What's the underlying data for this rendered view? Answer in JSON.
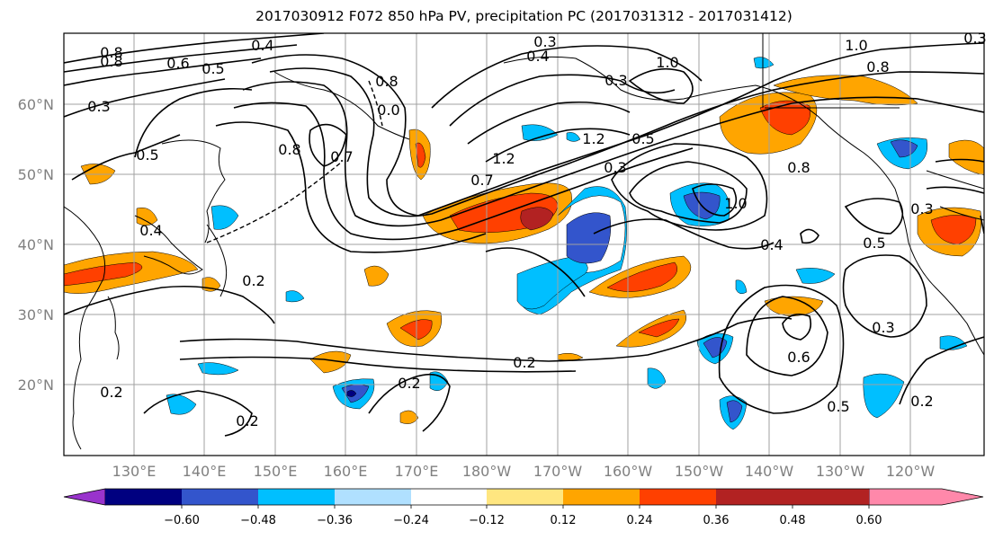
{
  "title": "2017030912 F072 850 hPa PV, precipitation PC (2017031312 - 2017031412)",
  "lat_labels": [
    "60°N",
    "50°N",
    "40°N",
    "30°N",
    "20°N"
  ],
  "lon_labels": [
    "130°E",
    "140°E",
    "150°E",
    "160°E",
    "170°E",
    "180°W",
    "170°W",
    "160°W",
    "150°W",
    "140°W",
    "130°W",
    "120°W"
  ],
  "contour_labels": [
    "0.8",
    "0.8",
    "0.4",
    "0.6",
    "0.5",
    "0.3",
    "0.3",
    "0.4",
    "1.0",
    "0.8",
    "0.0",
    "0.5",
    "0.7",
    "0.8",
    "0.3",
    "1.2",
    "1.2",
    "0.5",
    "0.7",
    "0.3",
    "0.8",
    "1.0",
    "1.0",
    "0.8",
    "0.3",
    "0.5",
    "0.4",
    "0.2",
    "0.2",
    "0.2",
    "0.2",
    "0.4",
    "0.6",
    "0.5",
    "0.3",
    "0.2",
    "0.2",
    "0.3"
  ],
  "colorbar": {
    "tick_labels": [
      "−0.60",
      "−0.48",
      "−0.36",
      "−0.24",
      "−0.12",
      "0.12",
      "0.24",
      "0.36",
      "0.48",
      "0.60"
    ],
    "colors": [
      "#9933cc",
      "#000080",
      "#3355cc",
      "#00bfff",
      "#b0e0ff",
      "#ffffff",
      "#ffe680",
      "#ffa500",
      "#ff4000",
      "#b22222",
      "#ff88aa"
    ]
  }
}
